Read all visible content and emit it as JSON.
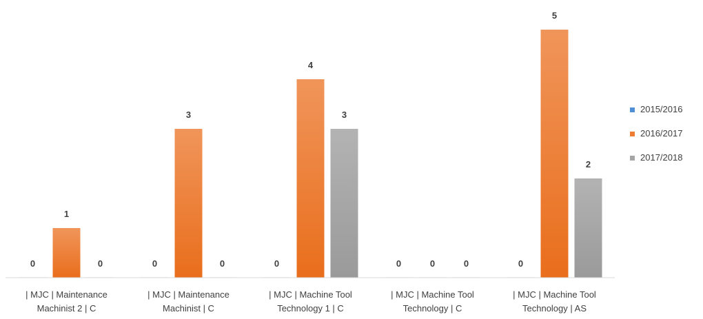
{
  "chart_data": {
    "type": "bar",
    "categories": [
      [
        "| MJC | Maintenance",
        "Machinist 2 | C"
      ],
      [
        "| MJC | Maintenance",
        "Machinist | C"
      ],
      [
        "| MJC | Machine Tool",
        "Technology 1 | C"
      ],
      [
        "| MJC | Machine Tool",
        "Technology | C"
      ],
      [
        "| MJC | Machine Tool",
        "Technology | AS"
      ]
    ],
    "series": [
      {
        "name": "2015/2016",
        "color": "#4f8fd6",
        "values": [
          0,
          0,
          0,
          0,
          0
        ]
      },
      {
        "name": "2016/2017",
        "color": "#ee7d31",
        "values": [
          1,
          3,
          4,
          0,
          5
        ]
      },
      {
        "name": "2017/2018",
        "color": "#a5a5a5",
        "values": [
          0,
          0,
          3,
          0,
          2
        ]
      }
    ],
    "ylim": [
      0,
      5
    ],
    "grid": false,
    "legend_position": "right",
    "data_labels": true
  }
}
